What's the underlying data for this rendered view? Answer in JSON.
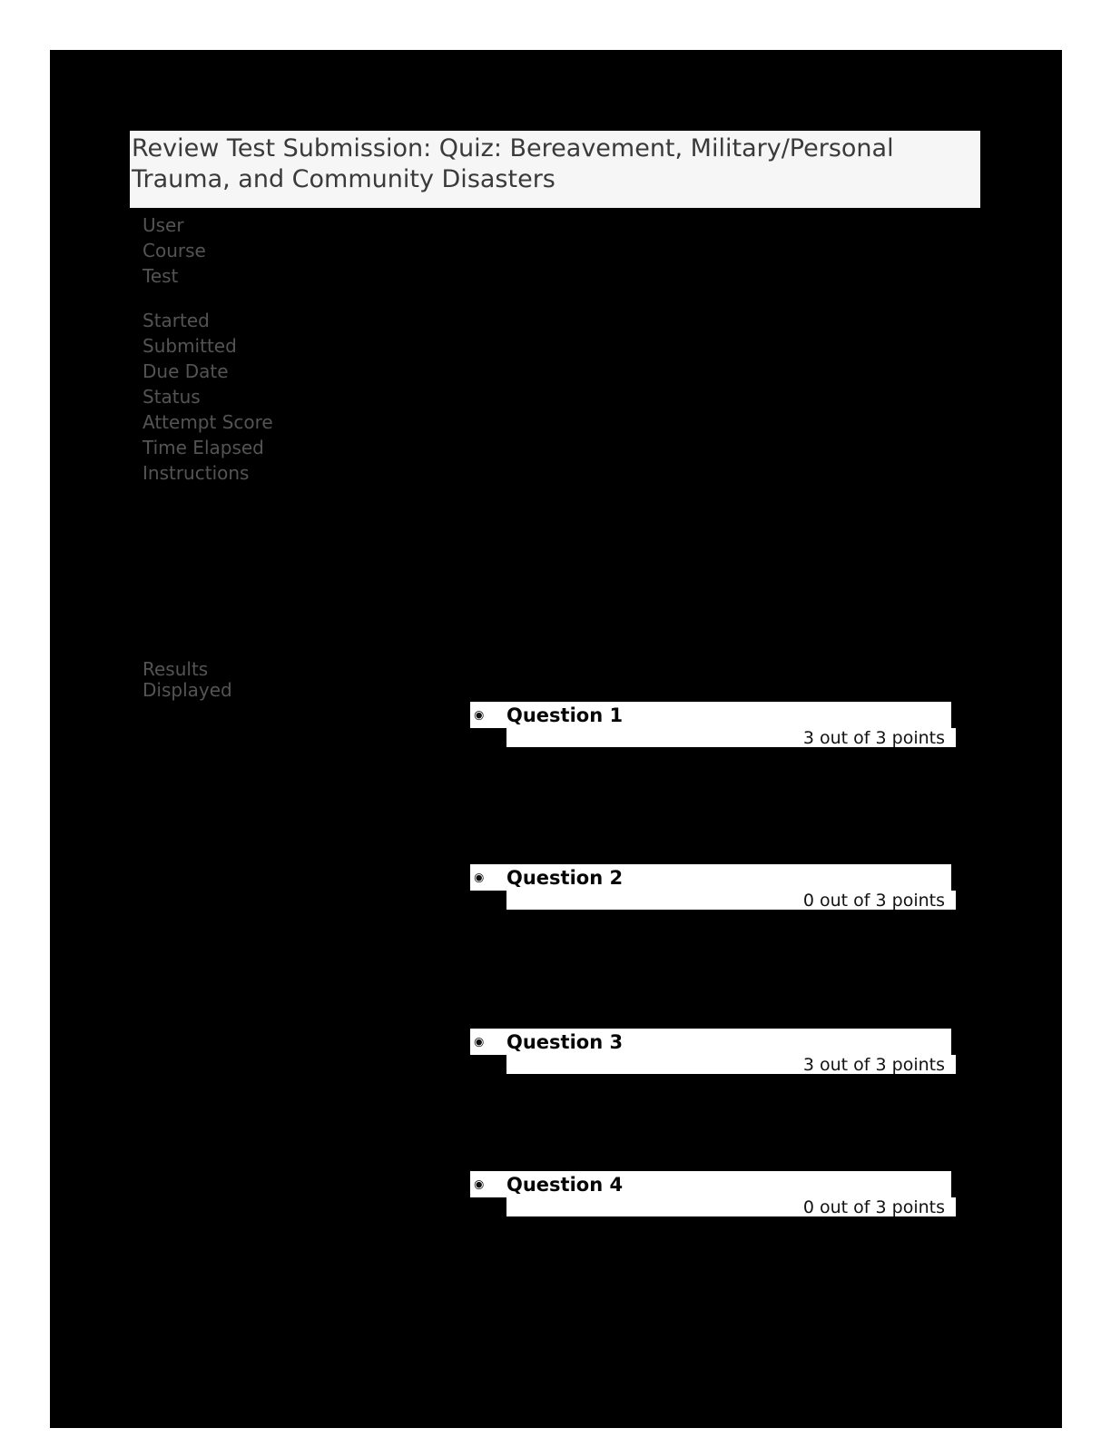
{
  "header": {
    "title": "Review Test Submission: Quiz: Bereavement, Military/Personal Trauma, and Community Disasters"
  },
  "meta": {
    "labels": [
      "User",
      "Course",
      "Test",
      "Started",
      "Submitted",
      "Due Date",
      "Status",
      "Attempt Score",
      "Time Elapsed",
      "Instructions",
      "Results Displayed"
    ]
  },
  "questions": [
    {
      "title": "Question 1",
      "points": "3 out of 3 points"
    },
    {
      "title": "Question 2",
      "points": "0 out of 3 points"
    },
    {
      "title": "Question 3",
      "points": "3 out of 3 points"
    },
    {
      "title": "Question 4",
      "points": "0 out of 3 points"
    }
  ],
  "icons": {
    "question_bullet": "◉"
  },
  "colors": {
    "content_bg": "#000000",
    "title_box_bg": "#f6f6f6",
    "title_text": "#3a3a3c",
    "label_text": "#545454"
  }
}
